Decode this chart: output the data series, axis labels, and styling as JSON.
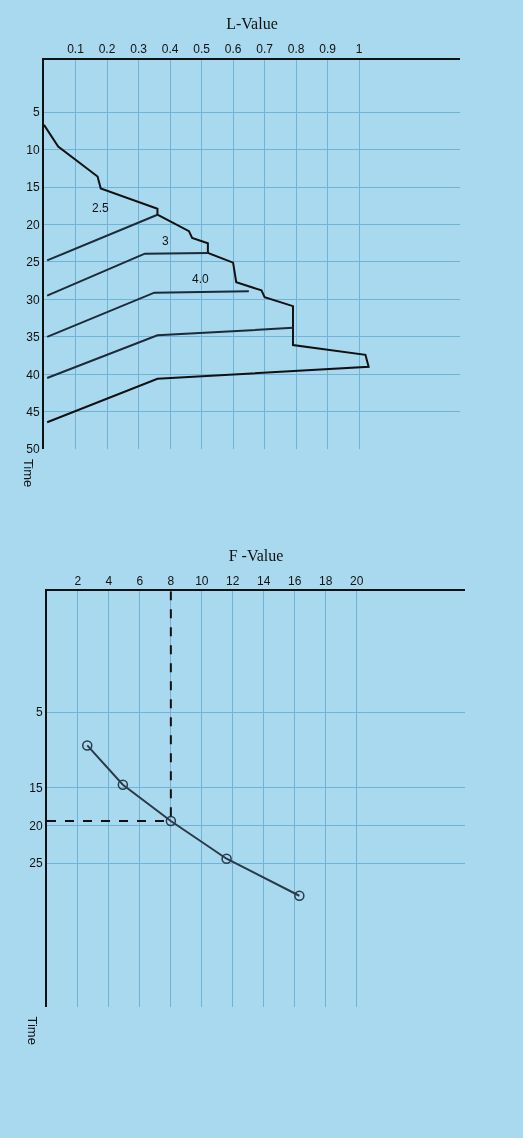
{
  "chart_data": [
    {
      "type": "line",
      "xlabel": "L-Value",
      "ylabel": "Time",
      "xlim": [
        0,
        1.32
      ],
      "xticks": [
        0.1,
        0.2,
        0.3,
        0.4,
        0.5,
        0.6,
        0.7,
        0.8,
        0.9,
        1
      ],
      "ylim": [
        50,
        -2
      ],
      "yticks": [
        5,
        10,
        15,
        20,
        25,
        30,
        35,
        40,
        45,
        50
      ],
      "grid": true,
      "series": [
        {
          "color": "#111111",
          "x": [
            0,
            0.045,
            0.17,
            0.18,
            0.36,
            0.36,
            0.46,
            0.47,
            0.52,
            0.52,
            0.6,
            0.61,
            0.69,
            0.7,
            0.79,
            0.79,
            1.02,
            1.03,
            0.36,
            0.01
          ],
          "values": [
            6.7,
            9.6,
            13.6,
            15.2,
            17.9,
            18.7,
            20.9,
            21.8,
            22.5,
            23.8,
            25.1,
            27.7,
            28.8,
            29.7,
            30.9,
            36.1,
            37.4,
            39.0,
            40.6,
            46.4
          ]
        },
        {
          "color": "#1c2a3a",
          "x": [
            0.01,
            0.36
          ],
          "values": [
            24.8,
            18.7
          ]
        },
        {
          "color": "#1c2a3a",
          "x": [
            0.01,
            0.32,
            0.52
          ],
          "values": [
            29.5,
            23.9,
            23.8
          ]
        },
        {
          "color": "#1c2a3a",
          "x": [
            0.01,
            0.35,
            0.65
          ],
          "values": [
            35.0,
            29.1,
            28.9
          ]
        },
        {
          "color": "#1c2a3a",
          "x": [
            0.01,
            0.36,
            0.79
          ],
          "values": [
            40.5,
            34.8,
            33.8
          ]
        }
      ],
      "annotations": [
        "2.5",
        "3",
        "4.0"
      ]
    },
    {
      "type": "line",
      "xlabel": "F -Value",
      "ylabel": "Time",
      "xlim": [
        0,
        27
      ],
      "xticks": [
        2,
        4,
        6,
        8,
        10,
        12,
        14,
        16,
        18,
        20
      ],
      "ylim": [
        44,
        -11
      ],
      "yticks": [
        5,
        15,
        20,
        25
      ],
      "grid": true,
      "marker": "circle",
      "series": [
        {
          "color": "#2a3a4a",
          "x": [
            2.6,
            4.9,
            8.0,
            11.6,
            16.3
          ],
          "values": [
            9.4,
            14.6,
            19.4,
            24.4,
            29.3
          ]
        },
        {
          "color": "#111111",
          "x": [
            8,
            8
          ],
          "values": [
            -11,
            19.4
          ],
          "line_style": "dashed",
          "marker": "none"
        },
        {
          "color": "#111111",
          "x": [
            0,
            8
          ],
          "values": [
            19.4,
            19.4
          ],
          "line_style": "dashed",
          "marker": "none"
        }
      ]
    }
  ]
}
